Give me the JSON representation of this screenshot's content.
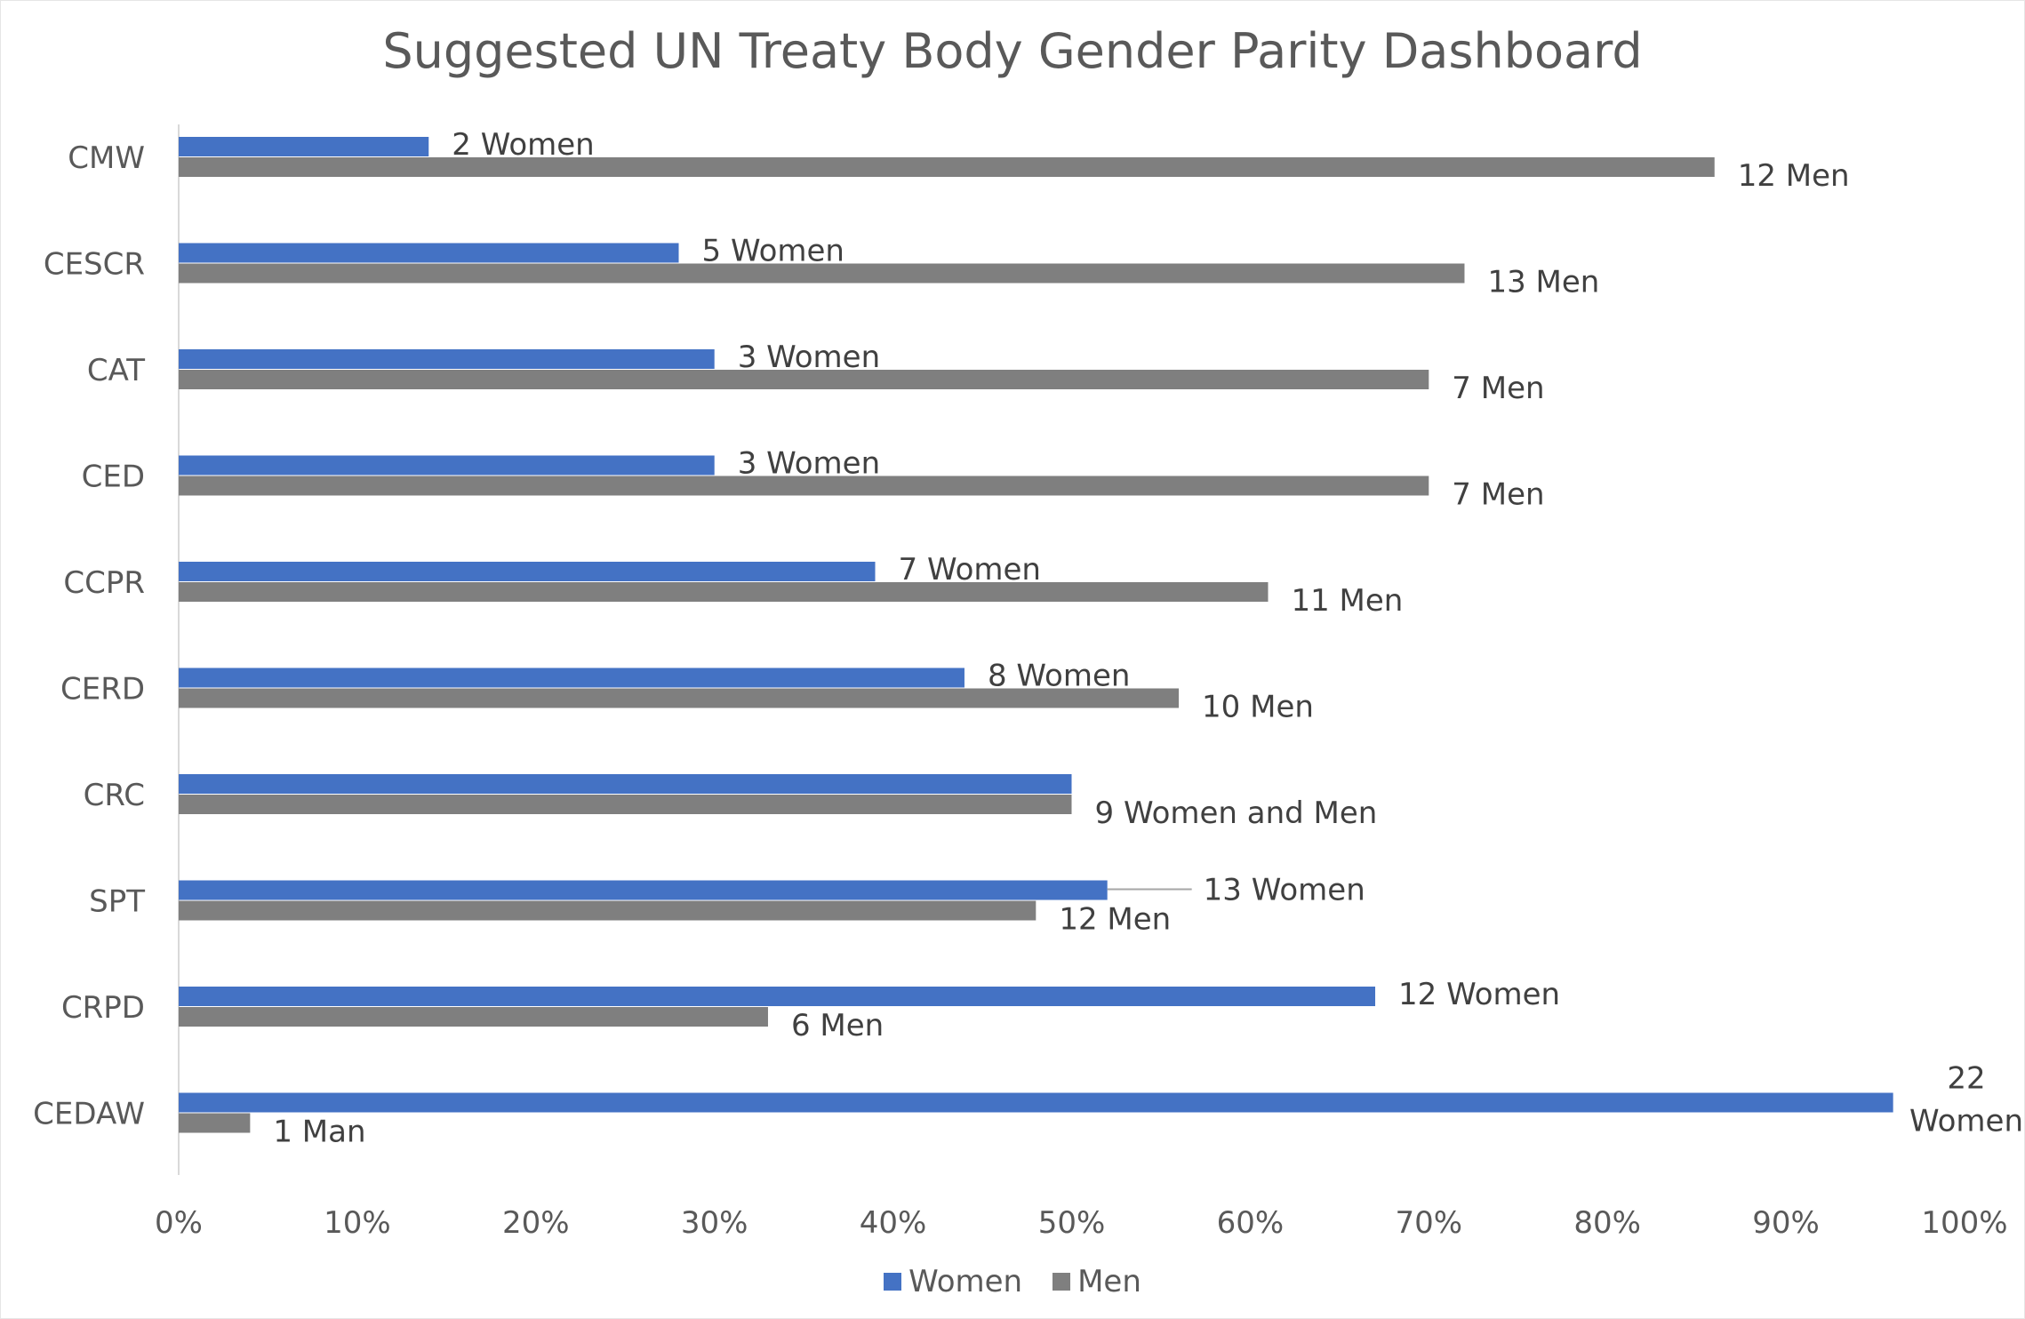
{
  "chart_data": {
    "type": "bar",
    "orientation": "horizontal",
    "title": "Suggested UN Treaty Body Gender Parity Dashboard",
    "categories": [
      "CMW",
      "CESCR",
      "CAT",
      "CED",
      "CCPR",
      "CERD",
      "CRC",
      "SPT",
      "CRPD",
      "CEDAW"
    ],
    "xlim": [
      0,
      100
    ],
    "x_ticks": [
      "0%",
      "10%",
      "20%",
      "30%",
      "40%",
      "50%",
      "60%",
      "70%",
      "80%",
      "90%",
      "100%"
    ],
    "legend_position": "bottom",
    "grid": false,
    "colors": {
      "Women": "#4472c4",
      "Men": "#7f7f7f",
      "text": "#595959"
    },
    "series": [
      {
        "name": "Women",
        "values": [
          14,
          28,
          30,
          30,
          39,
          44,
          50,
          52,
          67,
          96
        ],
        "labels": [
          "2 Women",
          "5 Women",
          "3 Women",
          "3 Women",
          "7 Women",
          "8 Women",
          "",
          "13 Women",
          "12 Women",
          "22 Women"
        ]
      },
      {
        "name": "Men",
        "values": [
          86,
          72,
          70,
          70,
          61,
          56,
          50,
          48,
          33,
          4
        ],
        "labels": [
          "12 Men",
          "13 Men",
          "7 Men",
          "7 Men",
          "11 Men",
          "10 Men",
          "9 Women and Men",
          "12 Men",
          "6 Men",
          "1 Man"
        ]
      }
    ]
  }
}
